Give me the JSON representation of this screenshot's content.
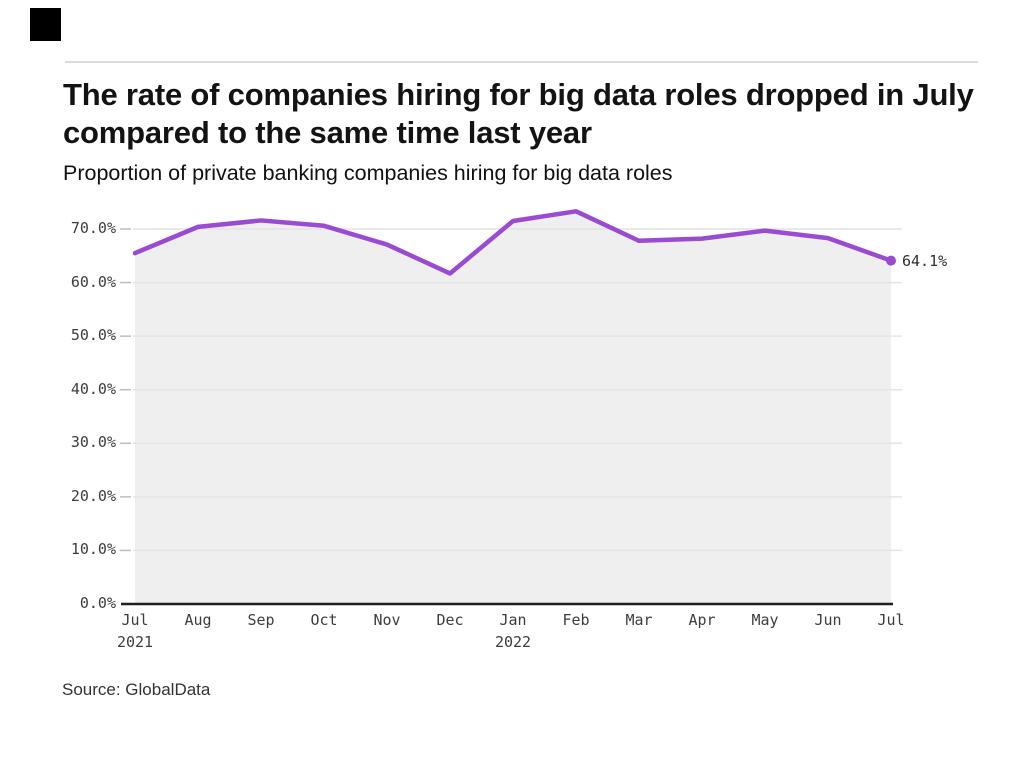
{
  "brand": {
    "logo_block_color": "#000000"
  },
  "title": "The rate of companies hiring for big data roles dropped in July compared to the same time last year",
  "subtitle": "Proportion of private banking companies hiring for big data roles",
  "source": "Source: GlobalData",
  "chart_data": {
    "type": "line",
    "title": "The rate of companies hiring for big data roles dropped in July compared to the same time last year",
    "subtitle": "Proportion of private banking companies hiring for big data roles",
    "categories": [
      "Jul",
      "Aug",
      "Sep",
      "Oct",
      "Nov",
      "Dec",
      "Jan",
      "Feb",
      "Mar",
      "Apr",
      "May",
      "Jun",
      "Jul"
    ],
    "year_markers": [
      {
        "index": 0,
        "label": "2021"
      },
      {
        "index": 6,
        "label": "2022"
      }
    ],
    "series": [
      {
        "name": "Proportion of private banking companies hiring for big data roles",
        "values": [
          65.5,
          70.4,
          71.6,
          70.6,
          67.1,
          61.7,
          71.5,
          73.3,
          67.8,
          68.2,
          69.7,
          68.3,
          64.1
        ]
      }
    ],
    "end_point_label": "64.1%",
    "xlabel": "",
    "ylabel": "",
    "ylim": [
      0,
      77
    ],
    "yticks": [
      0,
      10,
      20,
      30,
      40,
      50,
      60,
      70
    ],
    "ytick_labels": [
      "0.0%",
      "10.0%",
      "20.0%",
      "30.0%",
      "40.0%",
      "50.0%",
      "60.0%",
      "70.0%"
    ],
    "grid": "horizontal",
    "legend": "none",
    "line_color": "#9b4ad2",
    "area_fill_color": "#efefef",
    "gridline_color": "#e4e4e4",
    "tick_mark_color": "#bdbdbd",
    "axis_color": "#1f1f1f",
    "tick_text_color": "#3d3d3d"
  }
}
